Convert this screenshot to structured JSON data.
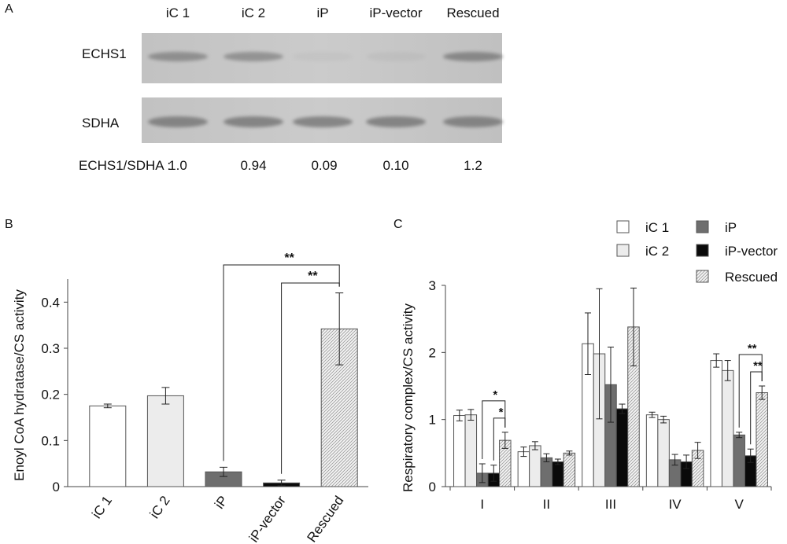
{
  "panel_a": {
    "panel_label": "A",
    "lanes": [
      "iC 1",
      "iC 2",
      "iP",
      "iP-vector",
      "Rescued"
    ],
    "blots": [
      {
        "label": "ECHS1",
        "band_intensity": [
          0.75,
          0.7,
          0.08,
          0.1,
          0.85
        ]
      },
      {
        "label": "SDHA",
        "band_intensity": [
          0.9,
          0.9,
          0.88,
          0.9,
          0.9
        ]
      }
    ],
    "ratio_label": "ECHS1/SDHA :",
    "ratios": [
      "1.0",
      "0.94",
      "0.09",
      "0.10",
      "1.2"
    ]
  },
  "chart_data": [
    {
      "panel_label": "B",
      "type": "bar",
      "ylabel": "Enoyl CoA hydratase/CS activity",
      "ylim": [
        0,
        0.45
      ],
      "yticks": [
        "0",
        "0.1",
        "0.2",
        "0.3",
        "0.4"
      ],
      "ytick_values": [
        0,
        0.1,
        0.2,
        0.3,
        0.4
      ],
      "categories": [
        "iC 1",
        "iC 2",
        "iP",
        "iP-vector",
        "Rescued"
      ],
      "values": [
        0.175,
        0.197,
        0.032,
        0.008,
        0.342
      ],
      "errors": [
        0.004,
        0.018,
        0.01,
        0.006,
        0.078
      ],
      "fills": [
        "white",
        "light",
        "gray",
        "black",
        "hatch"
      ],
      "significance": [
        {
          "from": 2,
          "to": 4,
          "label": "**"
        },
        {
          "from": 3,
          "to": 4,
          "label": "**"
        }
      ]
    },
    {
      "panel_label": "C",
      "type": "bar",
      "ylabel": "Respiratory complex/CS activity",
      "ylim": [
        0,
        3
      ],
      "yticks": [
        "0",
        "1",
        "2",
        "3"
      ],
      "ytick_values": [
        0,
        1,
        2,
        3
      ],
      "categories": [
        "I",
        "II",
        "III",
        "IV",
        "V"
      ],
      "legend_position": "top-right",
      "series": [
        {
          "name": "iC 1",
          "fill": "white",
          "values": [
            1.06,
            0.52,
            2.13,
            1.07,
            1.88
          ],
          "errors": [
            0.08,
            0.07,
            0.46,
            0.04,
            0.1
          ]
        },
        {
          "name": "iC 2",
          "fill": "light",
          "values": [
            1.07,
            0.61,
            1.98,
            1.0,
            1.73
          ],
          "errors": [
            0.08,
            0.06,
            0.97,
            0.05,
            0.15
          ]
        },
        {
          "name": "iP",
          "fill": "gray",
          "values": [
            0.2,
            0.43,
            1.52,
            0.4,
            0.77
          ],
          "errors": [
            0.14,
            0.06,
            0.56,
            0.08,
            0.04
          ]
        },
        {
          "name": "iP-vector",
          "fill": "black",
          "values": [
            0.2,
            0.37,
            1.16,
            0.37,
            0.46
          ],
          "errors": [
            0.12,
            0.04,
            0.07,
            0.1,
            0.1
          ]
        },
        {
          "name": "Rescued",
          "fill": "hatch",
          "values": [
            0.69,
            0.5,
            2.38,
            0.54,
            1.4
          ],
          "errors": [
            0.12,
            0.03,
            0.58,
            0.12,
            0.1
          ]
        }
      ],
      "significance": [
        {
          "category": 0,
          "from_series": 2,
          "to_series": 4,
          "label": "*"
        },
        {
          "category": 0,
          "from_series": 3,
          "to_series": 4,
          "label": "*"
        },
        {
          "category": 4,
          "from_series": 2,
          "to_series": 4,
          "label": "**"
        },
        {
          "category": 4,
          "from_series": 3,
          "to_series": 4,
          "label": "**"
        }
      ]
    }
  ],
  "colors": {
    "white": "#ffffff",
    "light": "#ececec",
    "gray": "#6e6e6e",
    "black": "#0a0a0a",
    "hatch_base": "#f4f4f4",
    "hatch_line": "#9a9a9a",
    "blot_bg": "#c4c4c4",
    "band": "#7d7d7d"
  }
}
